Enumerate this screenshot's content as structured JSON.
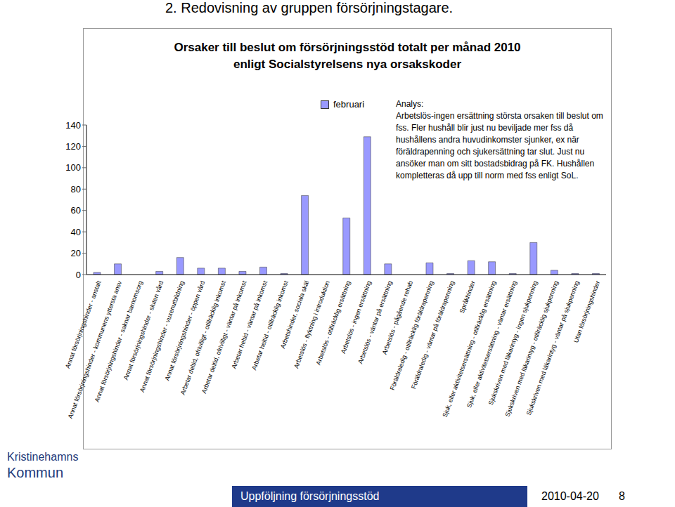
{
  "heading": "2. Redovisning av gruppen försörjningstagare.",
  "analysis": {
    "title": "Analys:",
    "text": "Arbetslös-ingen ersättning största orsaken till beslut om fss. Fler hushåll blir just nu beviljade mer fss då hushållens andra huvudinkomster sjunker, ex när föräldrapenning och sjukersättning tar slut. Just nu ansöker man om sitt bostadsbidrag på FK. Hushållen kompletteras då upp till norm med fss enligt SoL."
  },
  "logo": [
    "Kristinehamns",
    "Kommun"
  ],
  "footer": {
    "text": "Uppföljning försörjningsstöd",
    "date": "2010-04-20",
    "page": "8"
  },
  "chart_data": {
    "type": "bar",
    "title": "Orsaker till beslut om försörjningsstöd totalt per månad 2010\nenligt Socialstyrelsens nya orsakskoder",
    "categories": [
      "Annat försörjningshinder - anstalt",
      "Annat försörjningshinder - kommunens yttersta ansv",
      "Annat försörjningshinder - saknar barnomsorg",
      "Annat försörjningshinder - sluten vård",
      "Annat försörjningshinder - vuxenutbildning",
      "Annat försörjningshinder - öppen vård",
      "Arbetar deltid, ofrivilligt - otillräcklig inkomst",
      "Arbetar deltid, ofrivilligt - väntar på inkomst",
      "Arbetar heltid - väntar på inkomst",
      "Arbetar heltid - otillräcklig inkomst",
      "Arbetshinder, sociala skäl",
      "Arbetslös - flyktning i introduktion",
      "Arbetslös - otillräcklig ersättning",
      "Arbetslös - ingen ersättning",
      "Arbetslös - väntar på ersättning",
      "Arbetslös - pågående rehab",
      "Föräldraledig - otillräcklig föräldrapenning",
      "Föräldraledig - väntar på föräldrapenning",
      "Språkhinder",
      "Sjuk, eller aktivitetsersättning - otillräcklig ersättning",
      "Sjuk, eller aktivitetsersättning - väntar ersättning",
      "Sjukskriven med läkarintyg - ingen sjukpenning",
      "Sjukskriven med läkarintyg - otillräcklig sjukpenning",
      "Sjukskriven med läkarintyg - väntar på sjukpenning",
      "Utan försörjningshinder"
    ],
    "series": [
      {
        "name": "februari",
        "color": "#9999ff",
        "values": [
          2,
          10,
          0,
          3,
          16,
          6,
          6,
          3,
          7,
          1,
          74,
          0,
          53,
          129,
          10,
          0,
          11,
          1,
          13,
          12,
          1,
          30,
          4,
          1,
          1
        ]
      }
    ],
    "ylim": [
      0,
      140
    ],
    "yticks": [
      0,
      20,
      40,
      60,
      80,
      100,
      120,
      140
    ],
    "grid": false,
    "legend": "top"
  }
}
